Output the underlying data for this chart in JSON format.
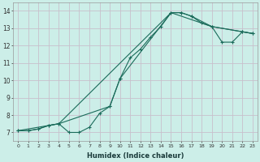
{
  "xlabel": "Humidex (Indice chaleur)",
  "bg_color": "#cceee8",
  "grid_color": "#c8c0cc",
  "line_color": "#1a6b5a",
  "xlim": [
    -0.5,
    23.5
  ],
  "ylim": [
    6.5,
    14.5
  ],
  "yticks": [
    7,
    8,
    9,
    10,
    11,
    12,
    13,
    14
  ],
  "xticks": [
    0,
    1,
    2,
    3,
    4,
    5,
    6,
    7,
    8,
    9,
    10,
    11,
    12,
    13,
    14,
    15,
    16,
    17,
    18,
    19,
    20,
    21,
    22,
    23
  ],
  "series1_x": [
    0,
    1,
    2,
    3,
    4,
    5,
    6,
    7,
    8,
    9,
    10,
    11,
    12,
    13,
    14,
    15,
    16,
    17,
    18,
    19,
    20,
    21,
    22,
    23
  ],
  "series1_y": [
    7.1,
    7.1,
    7.2,
    7.4,
    7.5,
    7.0,
    7.0,
    7.3,
    8.1,
    8.5,
    10.1,
    11.3,
    11.8,
    12.5,
    13.1,
    13.9,
    13.9,
    13.7,
    13.3,
    13.1,
    12.2,
    12.2,
    12.8,
    12.7
  ],
  "series2_x": [
    0,
    1,
    2,
    3,
    4,
    9,
    10,
    15,
    16,
    17,
    19,
    22,
    23
  ],
  "series2_y": [
    7.1,
    7.1,
    7.2,
    7.4,
    7.5,
    8.5,
    10.1,
    13.9,
    13.9,
    13.7,
    13.1,
    12.8,
    12.7
  ],
  "series3_x": [
    0,
    4,
    15,
    19,
    23
  ],
  "series3_y": [
    7.1,
    7.5,
    13.9,
    13.1,
    12.7
  ]
}
